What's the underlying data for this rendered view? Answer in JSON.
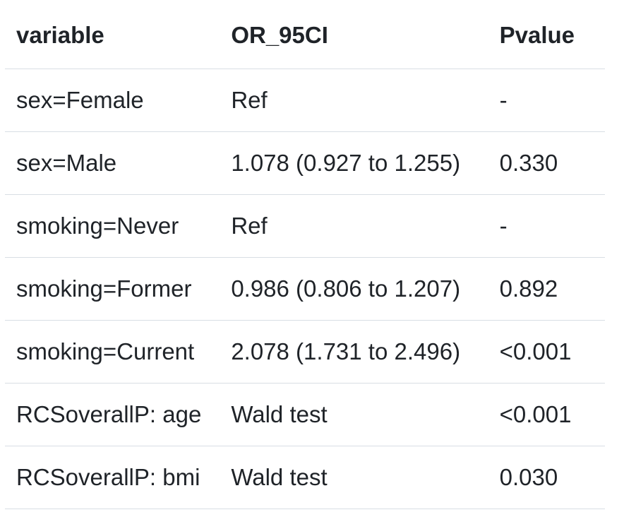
{
  "table": {
    "headers": [
      "variable",
      "OR_95CI",
      "Pvalue"
    ],
    "rows": [
      [
        "sex=Female",
        "Ref",
        "-"
      ],
      [
        "sex=Male",
        "1.078 (0.927 to 1.255)",
        "0.330"
      ],
      [
        "smoking=Never",
        "Ref",
        "-"
      ],
      [
        "smoking=Former",
        "0.986 (0.806 to 1.207)",
        "0.892"
      ],
      [
        "smoking=Current",
        "2.078 (1.731 to 2.496)",
        "<0.001"
      ],
      [
        "RCSoverallP: age",
        "Wald test",
        "<0.001"
      ],
      [
        "RCSoverallP: bmi",
        "Wald test",
        "0.030"
      ]
    ]
  }
}
